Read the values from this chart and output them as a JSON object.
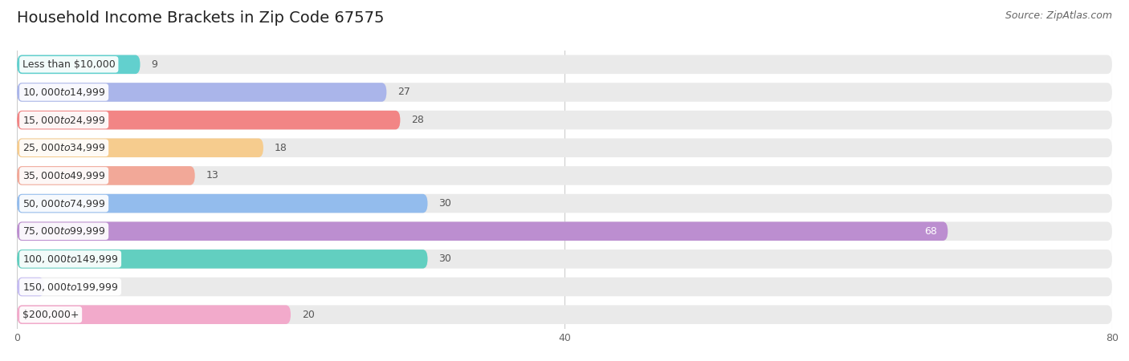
{
  "title": "Household Income Brackets in Zip Code 67575",
  "source": "Source: ZipAtlas.com",
  "categories": [
    "Less than $10,000",
    "$10,000 to $14,999",
    "$15,000 to $24,999",
    "$25,000 to $34,999",
    "$35,000 to $49,999",
    "$50,000 to $74,999",
    "$75,000 to $99,999",
    "$100,000 to $149,999",
    "$150,000 to $199,999",
    "$200,000+"
  ],
  "values": [
    9,
    27,
    28,
    18,
    13,
    30,
    68,
    30,
    2,
    20
  ],
  "bar_colors": [
    "#62d0ce",
    "#aab5ea",
    "#f28585",
    "#f6cc8e",
    "#f2a898",
    "#93bced",
    "#bc8ed0",
    "#62cfc0",
    "#c5bcf2",
    "#f2aacb"
  ],
  "bar_bg_color": "#eaeaea",
  "xlim": [
    0,
    80
  ],
  "xticks": [
    0,
    40,
    80
  ],
  "title_fontsize": 14,
  "label_fontsize": 9,
  "value_fontsize": 9,
  "source_fontsize": 9
}
